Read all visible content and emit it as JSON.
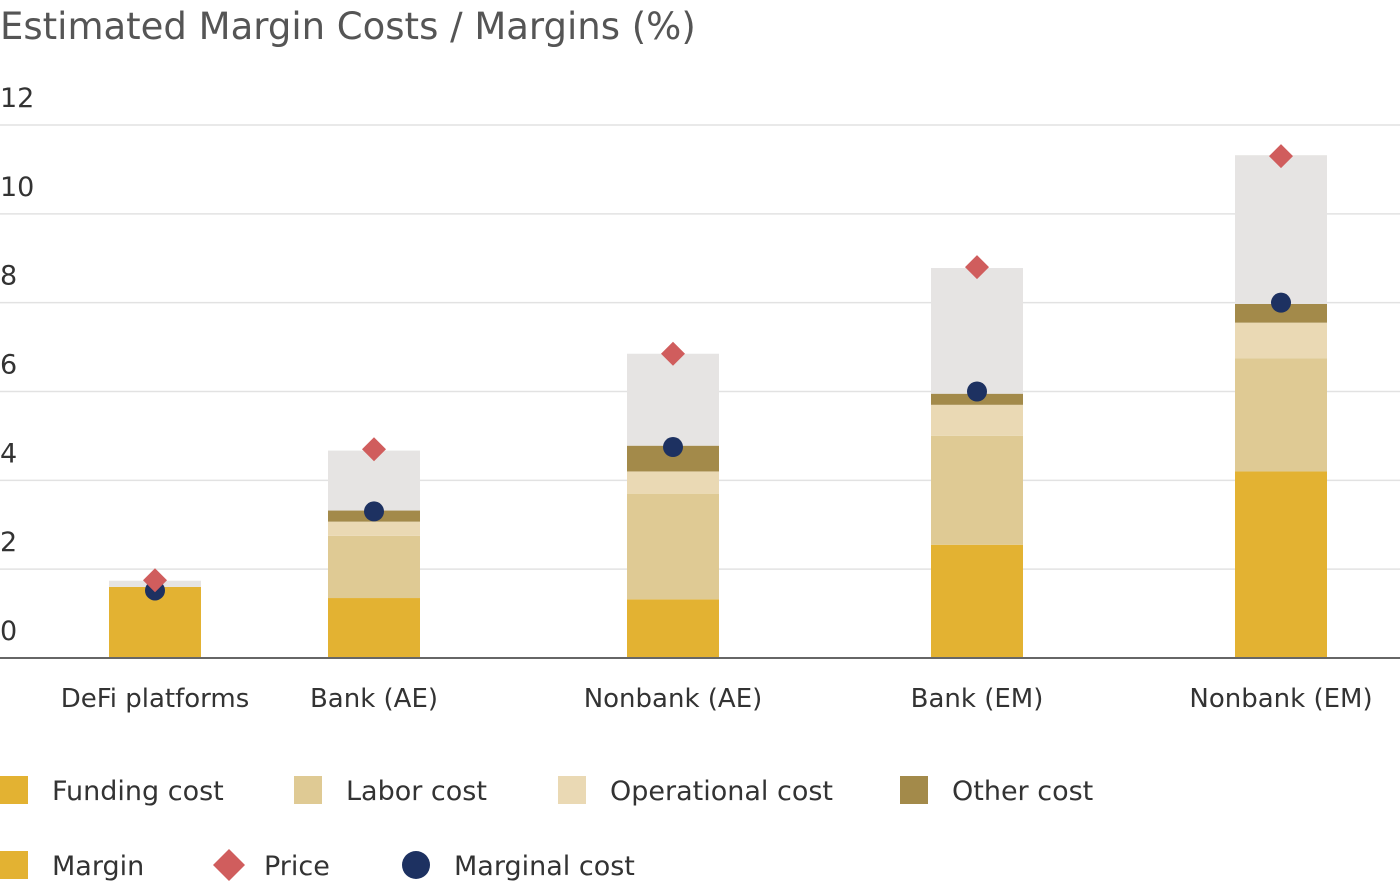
{
  "chart_data": {
    "type": "bar",
    "stacked": true,
    "title": "Estimated Margin Costs / Margins (%)",
    "xlabel": "",
    "ylabel": "",
    "ylim": [
      0,
      12
    ],
    "yticks": [
      0,
      2,
      4,
      6,
      8,
      10,
      12
    ],
    "grid": true,
    "legend_position": "bottom",
    "categories": [
      "DeFi platforms",
      "Bank (AE)",
      "Nonbank (AE)",
      "Bank (EM)",
      "Nonbank (EM)"
    ],
    "series": [
      {
        "name": "Funding cost",
        "kind": "stack",
        "color": "#E3B232",
        "values": [
          1.6,
          1.35,
          1.32,
          2.55,
          4.2
        ]
      },
      {
        "name": "Labor cost",
        "kind": "stack",
        "color": "#DFCA94",
        "values": [
          0.0,
          1.4,
          2.38,
          2.45,
          2.55
        ]
      },
      {
        "name": "Operational cost",
        "kind": "stack",
        "color": "#EAD9B4",
        "values": [
          0.0,
          0.32,
          0.5,
          0.7,
          0.8
        ]
      },
      {
        "name": "Other cost",
        "kind": "stack",
        "color": "#A38A4A",
        "values": [
          0.0,
          0.25,
          0.58,
          0.25,
          0.42
        ]
      },
      {
        "name": "Margin",
        "kind": "stack",
        "color": "#E6E4E3",
        "values": [
          0.14,
          1.35,
          2.07,
          2.83,
          3.35
        ]
      },
      {
        "name": "Price",
        "kind": "diamond",
        "color": "#D05D5D",
        "values": [
          1.75,
          4.7,
          6.85,
          8.8,
          11.3
        ]
      },
      {
        "name": "Marginal cost",
        "kind": "dot",
        "color": "#1D3161",
        "values": [
          1.52,
          3.3,
          4.75,
          6.0,
          8.0
        ]
      }
    ],
    "legend": [
      {
        "name": "Funding cost",
        "swatch": "square",
        "color": "#E3B232"
      },
      {
        "name": "Labor cost",
        "swatch": "square",
        "color": "#DFCA94"
      },
      {
        "name": "Operational cost",
        "swatch": "square",
        "color": "#EAD9B4"
      },
      {
        "name": "Other cost",
        "swatch": "square",
        "color": "#A38A4A"
      },
      {
        "name": "Margin",
        "swatch": "square",
        "color": "#E3B232"
      },
      {
        "name": "Price",
        "swatch": "diamond",
        "color": "#D05D5D"
      },
      {
        "name": "Marginal cost",
        "swatch": "circle",
        "color": "#1D3161"
      }
    ]
  }
}
